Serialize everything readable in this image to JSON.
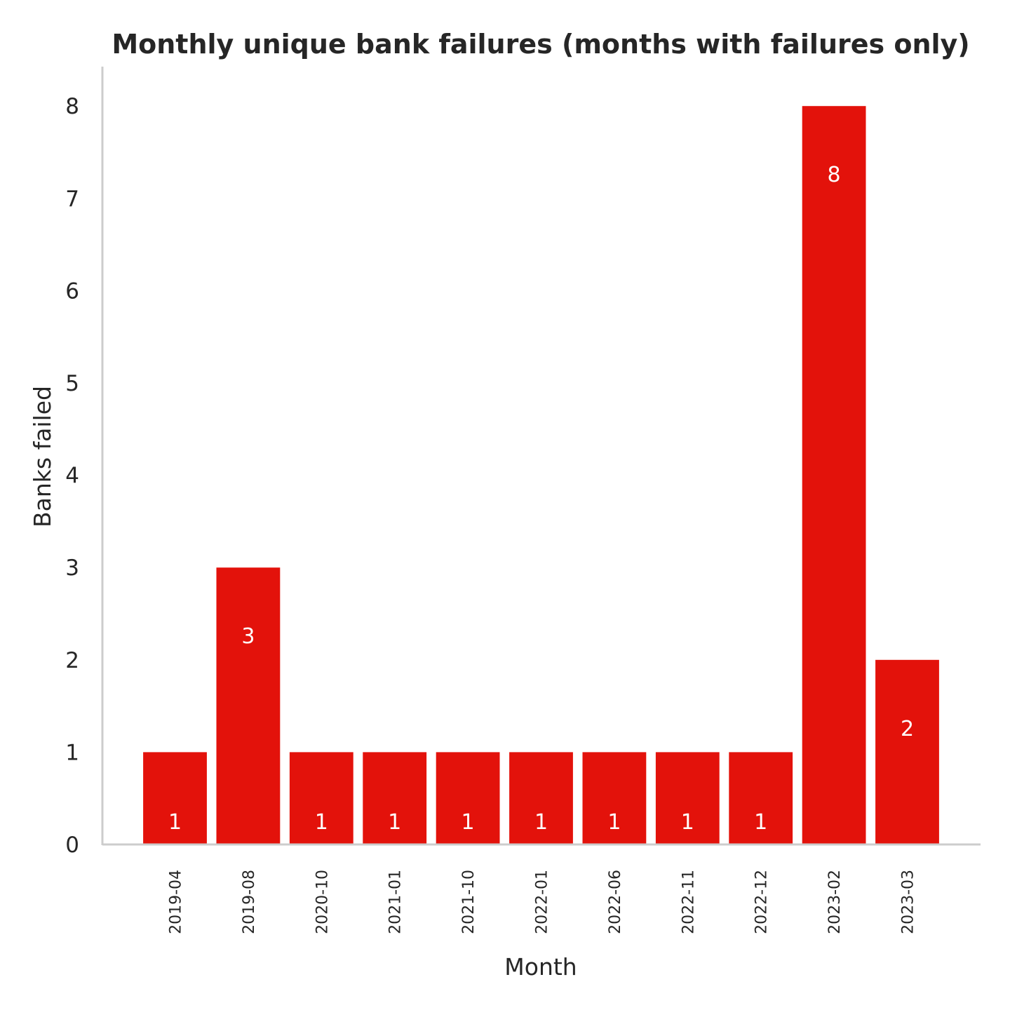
{
  "chart_data": {
    "type": "bar",
    "title": "Monthly unique bank failures (months with failures only)",
    "xlabel": "Month",
    "ylabel": "Banks failed",
    "categories": [
      "2019-04",
      "2019-08",
      "2020-10",
      "2021-01",
      "2021-10",
      "2022-01",
      "2022-06",
      "2022-11",
      "2022-12",
      "2023-02",
      "2023-03"
    ],
    "values": [
      1,
      3,
      1,
      1,
      1,
      1,
      1,
      1,
      1,
      8,
      2
    ],
    "data_labels": [
      "1",
      "3",
      "1",
      "1",
      "1",
      "1",
      "1",
      "1",
      "1",
      "8",
      "2"
    ],
    "ylim": [
      0,
      8.4
    ],
    "yticks": [
      0,
      1,
      2,
      3,
      4,
      5,
      6,
      7,
      8
    ],
    "grid": false,
    "legend": "none",
    "bar_color": "#e3120b"
  }
}
